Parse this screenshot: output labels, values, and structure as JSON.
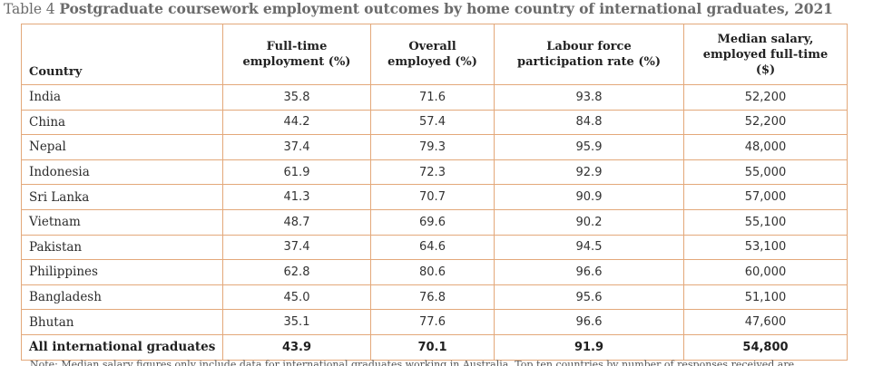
{
  "title": {
    "lead": "Table 4",
    "main": "Postgraduate coursework employment outcomes by home country of international graduates, 2021"
  },
  "table": {
    "headers": [
      "Country",
      "Full-time employment (%)",
      "Overall employed (%)",
      "Labour force participation rate (%)",
      "Median salary, employed full-time ($)"
    ],
    "rows": [
      [
        "India",
        "35.8",
        "71.6",
        "93.8",
        "52,200"
      ],
      [
        "China",
        "44.2",
        "57.4",
        "84.8",
        "52,200"
      ],
      [
        "Nepal",
        "37.4",
        "79.3",
        "95.9",
        "48,000"
      ],
      [
        "Indonesia",
        "61.9",
        "72.3",
        "92.9",
        "55,000"
      ],
      [
        "Sri Lanka",
        "41.3",
        "70.7",
        "90.9",
        "57,000"
      ],
      [
        "Vietnam",
        "48.7",
        "69.6",
        "90.2",
        "55,100"
      ],
      [
        "Pakistan",
        "37.4",
        "64.6",
        "94.5",
        "53,100"
      ],
      [
        "Philippines",
        "62.8",
        "80.6",
        "96.6",
        "60,000"
      ],
      [
        "Bangladesh",
        "45.0",
        "76.8",
        "95.6",
        "51,100"
      ],
      [
        "Bhutan",
        "35.1",
        "77.6",
        "96.6",
        "47,600"
      ]
    ],
    "total": [
      "All international graduates",
      "43.9",
      "70.1",
      "91.9",
      "54,800"
    ]
  },
  "note": "Note: Median salary figures only include data for international graduates working in Australia. Top ten countries by number of responses received are",
  "colors": {
    "border": "#e3a87a",
    "title": "#6b6b6b"
  }
}
